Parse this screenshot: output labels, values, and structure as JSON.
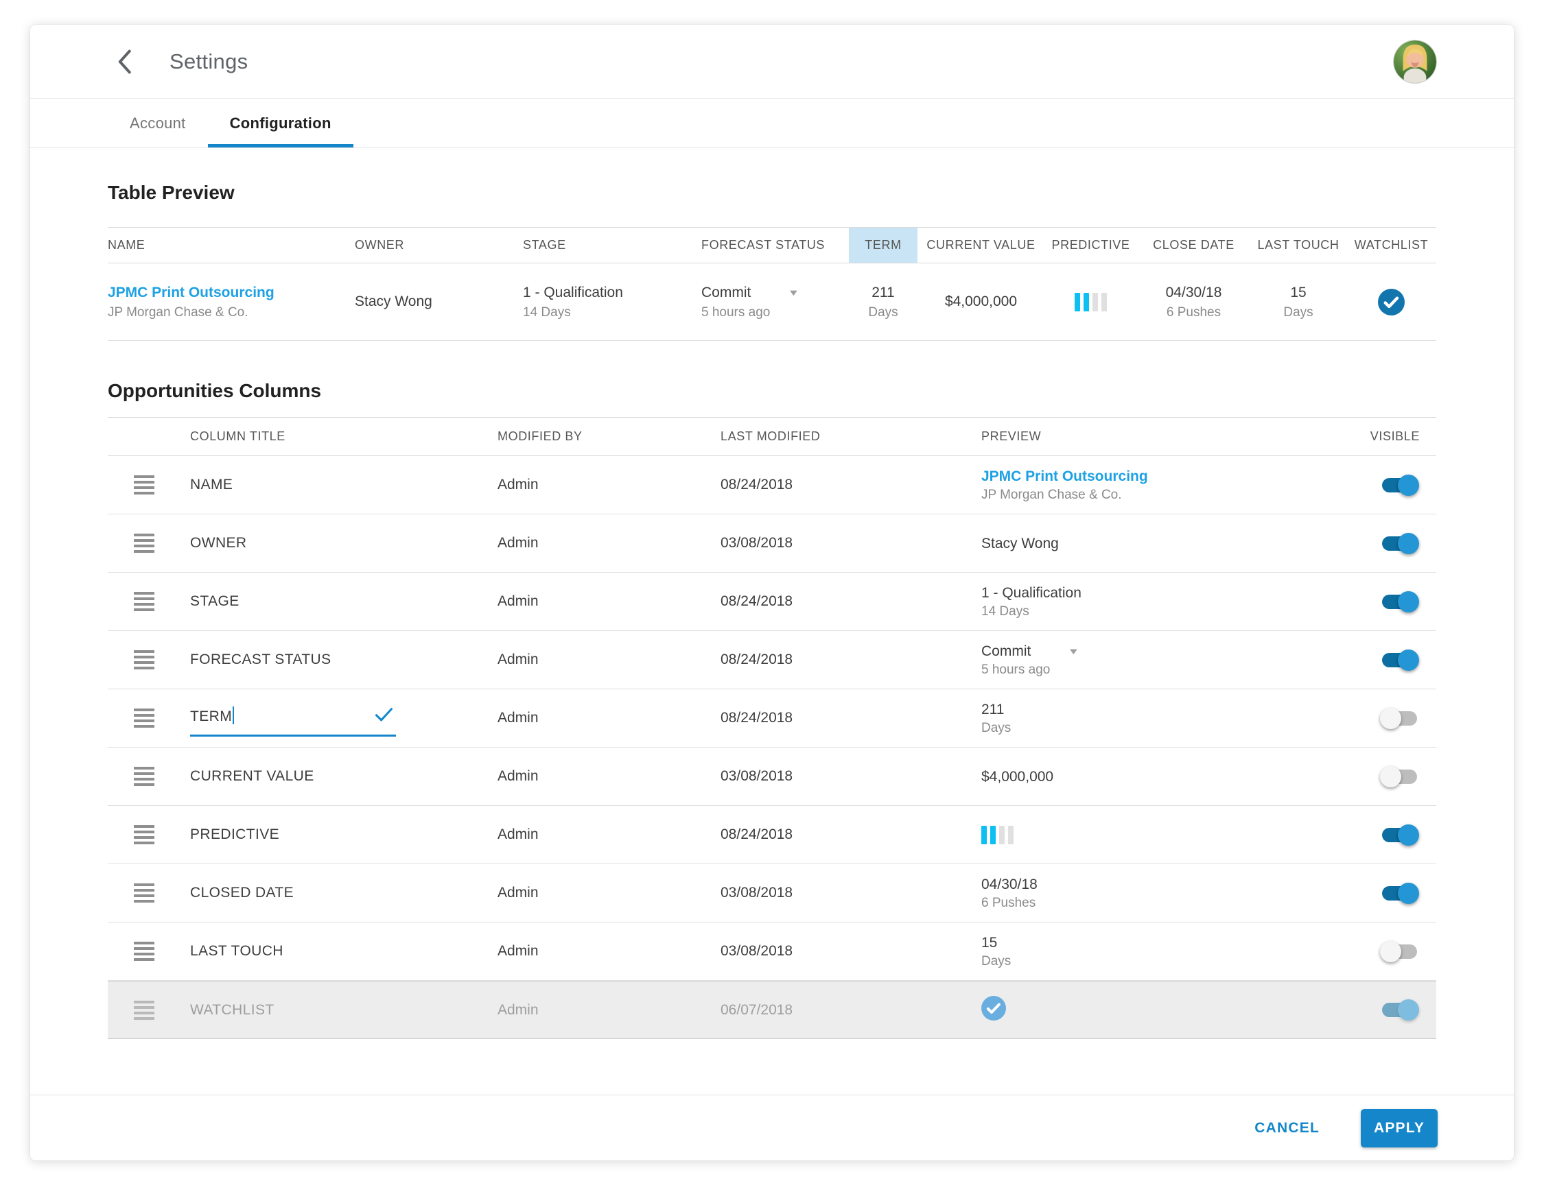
{
  "colors": {
    "accent_blue": "#1486c9",
    "link_blue": "#1da1e4",
    "cyan_bar": "#0cc0f2",
    "toggle_on_track": "#0d6fa1",
    "toggle_on_knob": "#2596d5",
    "term_header_highlight": "#c9e5f5",
    "check_circle_blue": "#1375ae",
    "check_circle_muted": "#69aede"
  },
  "header": {
    "title": "Settings",
    "back_icon": "chevron-left",
    "avatar_icon": "user-photo"
  },
  "tabs": [
    {
      "label": "Account",
      "active": false
    },
    {
      "label": "Configuration",
      "active": true
    }
  ],
  "table_preview": {
    "title": "Table Preview",
    "columns": [
      "NAME",
      "OWNER",
      "STAGE",
      "FORECAST STATUS",
      "TERM",
      "CURRENT VALUE",
      "PREDICTIVE",
      "CLOSE DATE",
      "LAST TOUCH",
      "WATCHLIST"
    ],
    "highlighted_column": "TERM",
    "row": {
      "name": "JPMC Print Outsourcing",
      "company": "JP Morgan Chase & Co.",
      "owner": "Stacy Wong",
      "stage": "1 - Qualification",
      "stage_sub": "14 Days",
      "forecast": "Commit",
      "forecast_sub": "5 hours ago",
      "term": "211",
      "term_sub": "Days",
      "current_value": "$4,000,000",
      "predictive_bars": {
        "active": 2,
        "total": 4
      },
      "close_date": "04/30/18",
      "close_date_sub": "6 Pushes",
      "last_touch": "15",
      "last_touch_sub": "Days",
      "watchlist_checked": true
    }
  },
  "opportunities": {
    "title": "Opportunities Columns",
    "columns": [
      "COLUMN TITLE",
      "MODIFIED BY",
      "LAST MODIFIED",
      "PREVIEW",
      "VISIBLE"
    ],
    "rows": [
      {
        "title": "NAME",
        "modified_by": "Admin",
        "last_modified": "08/24/2018",
        "preview_type": "link",
        "preview_main": "JPMC Print Outsourcing",
        "preview_sub": "JP Morgan Chase & Co.",
        "visible": true,
        "editing": false,
        "highlighted": false
      },
      {
        "title": "OWNER",
        "modified_by": "Admin",
        "last_modified": "03/08/2018",
        "preview_type": "text",
        "preview_main": "Stacy Wong",
        "preview_sub": "",
        "visible": true,
        "editing": false,
        "highlighted": false
      },
      {
        "title": "STAGE",
        "modified_by": "Admin",
        "last_modified": "08/24/2018",
        "preview_type": "text",
        "preview_main": "1 - Qualification",
        "preview_sub": "14 Days",
        "visible": true,
        "editing": false,
        "highlighted": false
      },
      {
        "title": "FORECAST STATUS",
        "modified_by": "Admin",
        "last_modified": "08/24/2018",
        "preview_type": "dropdown",
        "preview_main": "Commit",
        "preview_sub": "5 hours ago",
        "visible": true,
        "editing": false,
        "highlighted": false
      },
      {
        "title": "TERM",
        "modified_by": "Admin",
        "last_modified": "08/24/2018",
        "preview_type": "text",
        "preview_main": "211",
        "preview_sub": "Days",
        "visible": false,
        "editing": true,
        "highlighted": false
      },
      {
        "title": "CURRENT VALUE",
        "modified_by": "Admin",
        "last_modified": "03/08/2018",
        "preview_type": "text",
        "preview_main": "$4,000,000",
        "preview_sub": "",
        "visible": false,
        "editing": false,
        "highlighted": false
      },
      {
        "title": "PREDICTIVE",
        "modified_by": "Admin",
        "last_modified": "08/24/2018",
        "preview_type": "bars",
        "preview_main": "",
        "preview_sub": "",
        "visible": true,
        "editing": false,
        "highlighted": false
      },
      {
        "title": "CLOSED DATE",
        "modified_by": "Admin",
        "last_modified": "03/08/2018",
        "preview_type": "text",
        "preview_main": "04/30/18",
        "preview_sub": "6 Pushes",
        "visible": true,
        "editing": false,
        "highlighted": false
      },
      {
        "title": "LAST TOUCH",
        "modified_by": "Admin",
        "last_modified": "03/08/2018",
        "preview_type": "text",
        "preview_main": "15",
        "preview_sub": "Days",
        "visible": false,
        "editing": false,
        "highlighted": false
      },
      {
        "title": "WATCHLIST",
        "modified_by": "Admin",
        "last_modified": "06/07/2018",
        "preview_type": "check",
        "preview_main": "",
        "preview_sub": "",
        "visible": true,
        "editing": false,
        "highlighted": true
      }
    ]
  },
  "footer": {
    "cancel_label": "CANCEL",
    "apply_label": "APPLY"
  }
}
